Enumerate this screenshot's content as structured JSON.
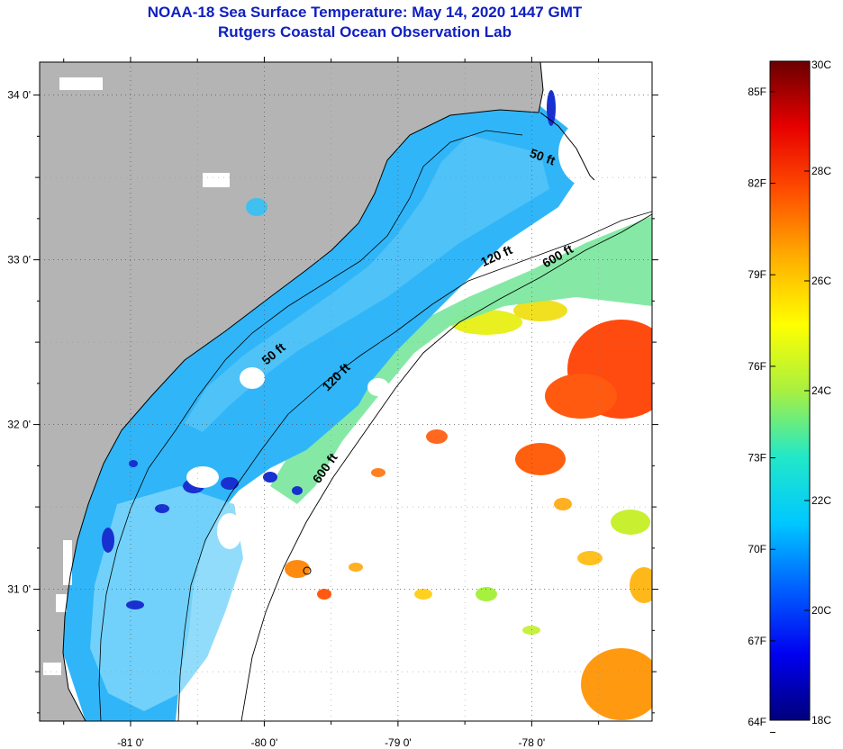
{
  "title": {
    "line1": "NOAA-18 Sea Surface Temperature:  May 14, 2020 1447 GMT",
    "line2": "Rutgers Coastal Ocean Observation Lab"
  },
  "map": {
    "lon_ticks": [
      {
        "value": -81,
        "label": "-81 0'"
      },
      {
        "value": -80,
        "label": "-80 0'"
      },
      {
        "value": -79,
        "label": "-79 0'"
      },
      {
        "value": -78,
        "label": "-78 0'"
      }
    ],
    "lat_ticks": [
      {
        "value": 34,
        "label": "34 0'"
      },
      {
        "value": 33,
        "label": "33 0'"
      },
      {
        "value": 32,
        "label": "32 0'"
      },
      {
        "value": 31,
        "label": "31 0'"
      }
    ],
    "lon_range": [
      -81.68,
      -77.1
    ],
    "lat_range": [
      30.2,
      34.2
    ],
    "colors": {
      "land": "#b4b4b4",
      "no_data": "#ffffff",
      "coast": "#000000"
    },
    "isobath_labels": [
      {
        "label": "50 ft",
        "lon": -77.93,
        "lat": 33.6,
        "angle": 20
      },
      {
        "label": "50 ft",
        "lon": -79.91,
        "lat": 32.41,
        "angle": -40
      },
      {
        "label": "120 ft",
        "lon": -78.25,
        "lat": 33.0,
        "angle": -25
      },
      {
        "label": "120 ft",
        "lon": -79.44,
        "lat": 32.27,
        "angle": -45
      },
      {
        "label": "600 ft",
        "lon": -77.79,
        "lat": 33.0,
        "angle": -30
      },
      {
        "label": "600 ft",
        "lon": -79.52,
        "lat": 31.72,
        "angle": -55
      }
    ]
  },
  "colorbar": {
    "min_c": 18,
    "max_c": 30,
    "celsius_ticks": [
      {
        "value": 30,
        "label": "30C"
      },
      {
        "value": 28,
        "label": "28C"
      },
      {
        "value": 26,
        "label": "26C"
      },
      {
        "value": 24,
        "label": "24C"
      },
      {
        "value": 22,
        "label": "22C"
      },
      {
        "value": 20,
        "label": "20C"
      },
      {
        "value": 18,
        "label": "18C"
      }
    ],
    "fahrenheit_ticks": [
      {
        "value": 85,
        "label": "85F"
      },
      {
        "value": 82,
        "label": "82F"
      },
      {
        "value": 79,
        "label": "79F"
      },
      {
        "value": 76,
        "label": "76F"
      },
      {
        "value": 73,
        "label": "73F"
      },
      {
        "value": 70,
        "label": "70F"
      },
      {
        "value": 67,
        "label": "67F"
      },
      {
        "value": 64,
        "label": "64F"
      }
    ],
    "stops": [
      "#00007a",
      "#0000f0",
      "#0060ff",
      "#00c8ff",
      "#22e8c8",
      "#a8f040",
      "#ffff00",
      "#ffb000",
      "#ff5000",
      "#e80000",
      "#6a0000"
    ]
  }
}
